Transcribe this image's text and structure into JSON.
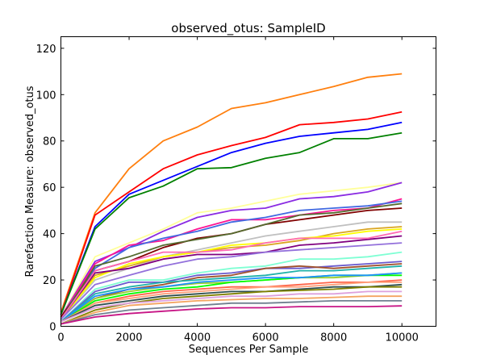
{
  "chart_data": {
    "type": "line",
    "title": "observed_otus: SampleID",
    "xlabel": "Sequences Per Sample",
    "ylabel": "Rarefaction Measure: observed_otus",
    "xlim": [
      0,
      11000
    ],
    "ylim": [
      0,
      125
    ],
    "x_ticks": [
      0,
      2000,
      4000,
      6000,
      8000,
      10000
    ],
    "y_ticks": [
      0,
      20,
      40,
      60,
      80,
      100,
      120
    ],
    "grid": false,
    "legend": "none",
    "x": [
      1,
      1000,
      2000,
      3000,
      4000,
      5000,
      6000,
      7000,
      8000,
      9000,
      10000
    ],
    "series": [
      {
        "color": "#ff7f0e",
        "values": [
          6,
          49,
          68,
          80,
          86,
          94,
          96.5,
          100,
          103.5,
          107.5,
          109
        ]
      },
      {
        "color": "#ff0000",
        "values": [
          5,
          48,
          58,
          68,
          74,
          78,
          81.5,
          87,
          88,
          89.5,
          92.5
        ]
      },
      {
        "color": "#0000ff",
        "values": [
          5,
          43,
          57,
          63,
          69,
          75,
          79,
          82,
          83.5,
          85,
          88
        ]
      },
      {
        "color": "#008000",
        "values": [
          5,
          42,
          55.5,
          60.5,
          68,
          68.5,
          72.5,
          75,
          81,
          81,
          83.5
        ]
      },
      {
        "color": "#ffff99",
        "values": [
          4,
          30,
          36,
          42,
          49,
          51,
          54,
          57,
          58.5,
          60,
          62
        ]
      },
      {
        "color": "#8a2be2",
        "values": [
          4,
          28,
          34,
          41,
          47,
          50,
          51,
          55,
          56,
          58,
          62
        ]
      },
      {
        "color": "#ff1493",
        "values": [
          4,
          27,
          35,
          37,
          42,
          46,
          46,
          48,
          50,
          51,
          55
        ]
      },
      {
        "color": "#4169e1",
        "values": [
          4,
          25,
          34,
          38,
          41,
          45,
          47,
          50,
          51,
          52,
          54
        ]
      },
      {
        "color": "#800000",
        "values": [
          4,
          24,
          28,
          34,
          38,
          40,
          44,
          46,
          48,
          50,
          51
        ]
      },
      {
        "color": "#556b2f",
        "values": [
          3,
          26,
          30,
          35,
          37.5,
          40,
          44,
          48,
          49,
          51,
          53
        ]
      },
      {
        "color": "#c0c0c0",
        "values": [
          3,
          20,
          25,
          30,
          33,
          36,
          39,
          41,
          43,
          45,
          45
        ]
      },
      {
        "color": "#daa520",
        "values": [
          3,
          22,
          26,
          30,
          32,
          34,
          35,
          37,
          40,
          42,
          43
        ]
      },
      {
        "color": "#ffff00",
        "values": [
          3,
          21,
          27,
          30,
          32,
          35,
          36,
          38,
          39,
          41,
          42
        ]
      },
      {
        "color": "#800080",
        "values": [
          3,
          23,
          25,
          29,
          31,
          31,
          32,
          35,
          36,
          37.5,
          39
        ]
      },
      {
        "color": "#ff69b4",
        "values": [
          3,
          24,
          28,
          32,
          32,
          33,
          36,
          38,
          38,
          38,
          41
        ]
      },
      {
        "color": "#9370db",
        "values": [
          3,
          18,
          22,
          26,
          29,
          30,
          32,
          33,
          34,
          35,
          36
        ]
      },
      {
        "color": "#7fffd4",
        "values": [
          2,
          16,
          20,
          20,
          23,
          25,
          26,
          29,
          29,
          30,
          32
        ]
      },
      {
        "color": "#6a5acd",
        "values": [
          2,
          15,
          19,
          19,
          22,
          23,
          25,
          25,
          26,
          27,
          28
        ]
      },
      {
        "color": "#a0522d",
        "values": [
          2,
          12,
          16,
          18,
          21,
          22,
          25,
          26,
          25,
          26,
          27
        ]
      },
      {
        "color": "#20b2aa",
        "values": [
          2,
          14,
          17,
          19,
          20,
          21,
          22,
          24,
          24,
          25,
          26
        ]
      },
      {
        "color": "#9acd32",
        "values": [
          2,
          12,
          15,
          17,
          18.5,
          19,
          20,
          21,
          21,
          22,
          23
        ]
      },
      {
        "color": "#00ff00",
        "values": [
          2,
          11,
          14,
          16,
          17,
          19,
          20,
          21,
          22,
          22,
          22
        ]
      },
      {
        "color": "#1e90ff",
        "values": [
          2,
          13,
          16,
          17,
          19,
          20,
          21,
          21,
          22,
          22,
          23
        ]
      },
      {
        "color": "#ff6347",
        "values": [
          2,
          10,
          13,
          15,
          16,
          17,
          17,
          18,
          19,
          19,
          20
        ]
      },
      {
        "color": "#ffa07a",
        "values": [
          2,
          10,
          12,
          14,
          15,
          16,
          17,
          17,
          18,
          19,
          19
        ]
      },
      {
        "color": "#2f4f4f",
        "values": [
          2,
          9,
          11,
          13,
          14,
          15,
          15,
          16,
          17,
          17,
          18
        ]
      },
      {
        "color": "#808000",
        "values": [
          1,
          7,
          10,
          12,
          13,
          14,
          15,
          15.5,
          16,
          17,
          17
        ]
      },
      {
        "color": "#dda0dd",
        "values": [
          2,
          8,
          10,
          11,
          12,
          13,
          13,
          14,
          14,
          15,
          15
        ]
      },
      {
        "color": "#f4a460",
        "values": [
          1,
          6,
          9,
          10,
          11,
          11.5,
          12,
          12,
          12.5,
          13,
          13
        ]
      },
      {
        "color": "#708090",
        "values": [
          1,
          5,
          7,
          8,
          9,
          10,
          10,
          10.5,
          11,
          11,
          11
        ]
      },
      {
        "color": "#c71585",
        "values": [
          1,
          4,
          5.5,
          6.5,
          7.5,
          8,
          8,
          8.5,
          8.5,
          8.5,
          8.8
        ]
      }
    ]
  }
}
